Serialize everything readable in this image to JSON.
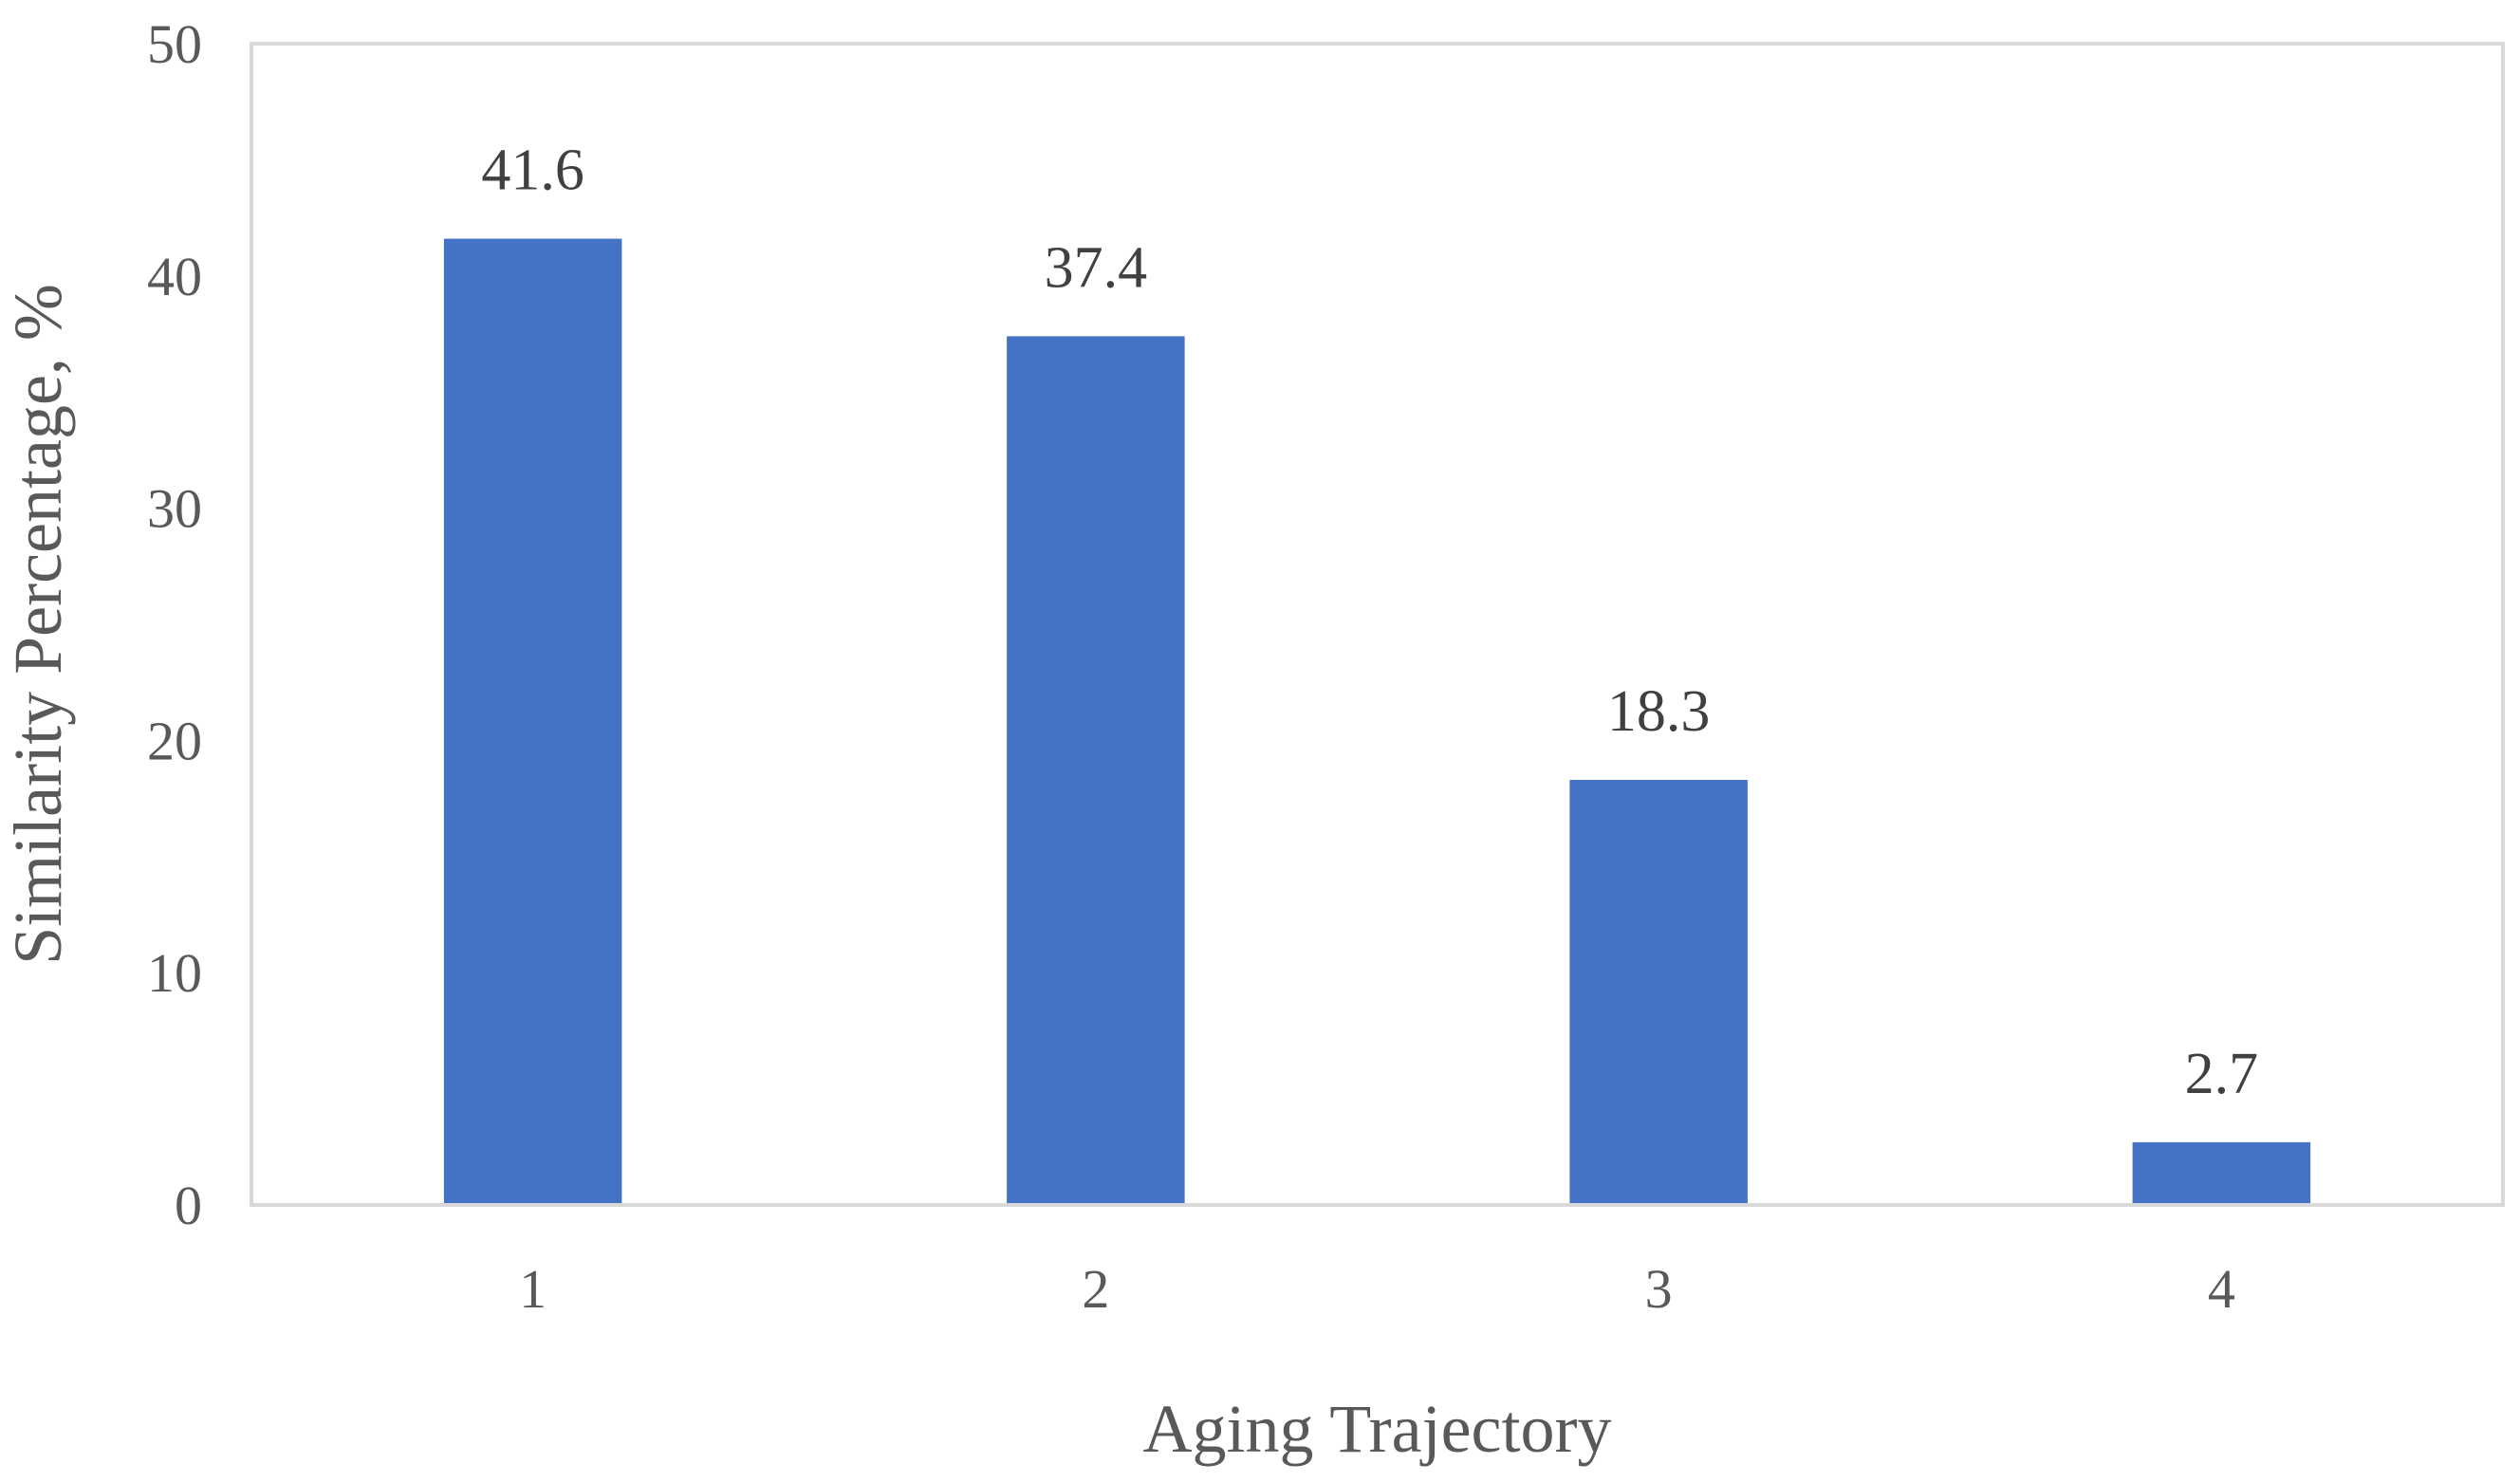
{
  "chart_data": {
    "type": "bar",
    "title": "",
    "xlabel": "Aging Trajectory",
    "ylabel": "Similarity Percentage, %",
    "categories": [
      "1",
      "2",
      "3",
      "4"
    ],
    "values": [
      41.6,
      37.4,
      18.3,
      2.7
    ],
    "data_labels": [
      "41.6",
      "37.4",
      "18.3",
      "2.7"
    ],
    "ylim": [
      0,
      50
    ],
    "yticks": [
      0,
      10,
      20,
      30,
      40,
      50
    ],
    "ytick_labels": [
      "0",
      "10",
      "20",
      "30",
      "40",
      "50"
    ],
    "grid": false,
    "legend": "none",
    "bar_color": "#4472C4",
    "frame_color": "#D9D9D9"
  }
}
